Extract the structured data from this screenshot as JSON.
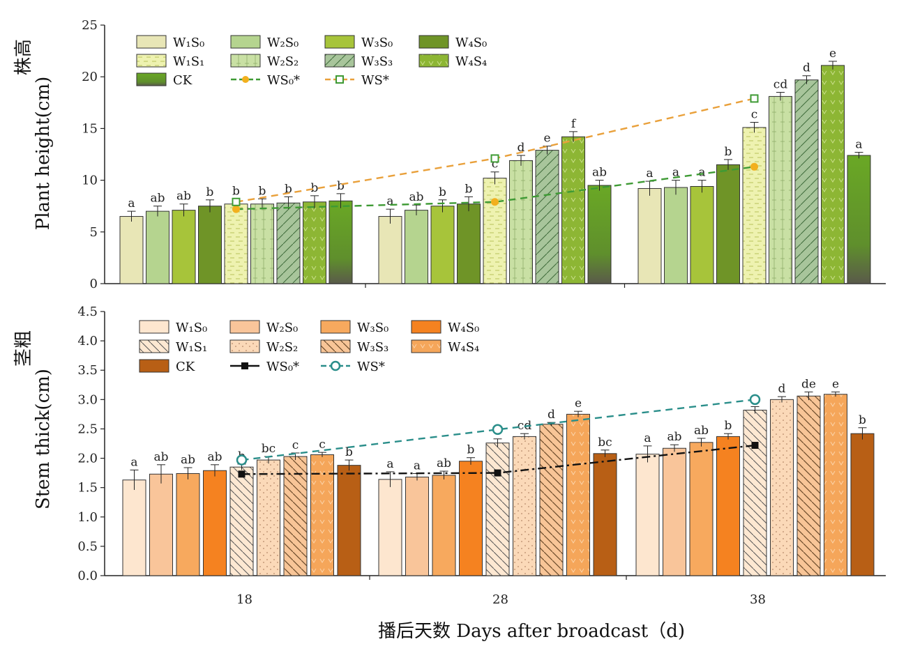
{
  "chart_data": [
    {
      "type": "bar",
      "ylabel_cn": "株高",
      "ylabel": "Plant height(cm)",
      "ylim": [
        0,
        25
      ],
      "yticks": [
        "0",
        "5",
        "10",
        "15",
        "20",
        "25"
      ],
      "xlabel": "播后天数 Days after broadcast（d)",
      "categories": [
        "18",
        "28",
        "38"
      ],
      "colors": {
        "W1S0": "#e8e6b6",
        "W2S0": "#b5d48f",
        "W3S0": "#a7c43a",
        "W4S0": "#6f9427",
        "W1S1": "#eef2b0",
        "W2S2": "#c9e0a4",
        "W3S3": "#a8c59b",
        "W4S4": "#8db634",
        "CK": "#6aa825",
        "WS0": "#3e9a34",
        "WS": "#e9a03a"
      },
      "series": [
        {
          "name": "W1S0",
          "values": [
            6.5,
            6.5,
            9.2
          ],
          "err": [
            0.5,
            0.7,
            0.7
          ],
          "letters": [
            "a",
            "a",
            "a"
          ],
          "pattern": "solid"
        },
        {
          "name": "W2S0",
          "values": [
            7.0,
            7.1,
            9.3
          ],
          "err": [
            0.5,
            0.5,
            0.7
          ],
          "letters": [
            "ab",
            "ab",
            "a"
          ],
          "pattern": "solid"
        },
        {
          "name": "W3S0",
          "values": [
            7.1,
            7.5,
            9.4
          ],
          "err": [
            0.6,
            0.6,
            0.6
          ],
          "letters": [
            "ab",
            "b",
            "a"
          ],
          "pattern": "solid"
        },
        {
          "name": "W4S0",
          "values": [
            7.5,
            7.7,
            11.5
          ],
          "err": [
            0.6,
            0.7,
            0.5
          ],
          "letters": [
            "b",
            "b",
            "b"
          ],
          "pattern": "solid"
        },
        {
          "name": "W1S1",
          "values": [
            7.7,
            10.2,
            15.1
          ],
          "err": [
            0.5,
            0.6,
            0.5
          ],
          "letters": [
            "b",
            "c",
            "c"
          ],
          "pattern": "dash"
        },
        {
          "name": "W2S2",
          "values": [
            7.7,
            11.9,
            18.1
          ],
          "err": [
            0.5,
            0.5,
            0.4
          ],
          "letters": [
            "b",
            "d",
            "cd"
          ],
          "pattern": "grid"
        },
        {
          "name": "W3S3",
          "values": [
            7.8,
            12.9,
            19.7
          ],
          "err": [
            0.6,
            0.4,
            0.4
          ],
          "letters": [
            "b",
            "e",
            "d"
          ],
          "pattern": "diag"
        },
        {
          "name": "W4S4",
          "values": [
            7.9,
            14.2,
            21.1
          ],
          "err": [
            0.6,
            0.5,
            0.4
          ],
          "letters": [
            "b",
            "f",
            "e"
          ],
          "pattern": "vee"
        },
        {
          "name": "CK",
          "values": [
            8.0,
            9.5,
            12.4
          ],
          "err": [
            0.7,
            0.5,
            0.3
          ],
          "letters": [
            "b",
            "ab",
            "a"
          ],
          "pattern": "solid"
        }
      ],
      "lines": [
        {
          "name": "WS0*",
          "values": [
            7.2,
            7.9,
            11.3
          ],
          "color_key": "WS0",
          "marker": "dot"
        },
        {
          "name": "WS*",
          "values": [
            7.9,
            12.1,
            17.9
          ],
          "color_key": "WS",
          "marker": "square-open"
        }
      ],
      "legend": {
        "placement": "top-left",
        "items": [
          {
            "label": "W₁S₀",
            "key": "W1S0",
            "type": "bar"
          },
          {
            "label": "W₂S₀",
            "key": "W2S0",
            "type": "bar"
          },
          {
            "label": "W₃S₀",
            "key": "W3S0",
            "type": "bar"
          },
          {
            "label": "W₄S₀",
            "key": "W4S0",
            "type": "bar"
          },
          {
            "label": "W₁S₁",
            "key": "W1S1",
            "type": "bar"
          },
          {
            "label": "W₂S₂",
            "key": "W2S2",
            "type": "bar"
          },
          {
            "label": "W₃S₃",
            "key": "W3S3",
            "type": "bar"
          },
          {
            "label": "W₄S₄",
            "key": "W4S4",
            "type": "bar"
          },
          {
            "label": "CK",
            "key": "CK",
            "type": "bar"
          },
          {
            "label": "WS₀*",
            "key": "WS0*",
            "type": "line"
          },
          {
            "label": "WS*",
            "key": "WS*",
            "type": "line"
          }
        ]
      }
    },
    {
      "type": "bar",
      "ylabel_cn": "茎粗",
      "ylabel": "Stem thick(cm)",
      "ylim": [
        0,
        4.5
      ],
      "yticks": [
        "0.0",
        "0.5",
        "1.0",
        "1.5",
        "2.0",
        "2.5",
        "3.0",
        "3.5",
        "4.0",
        "4.5"
      ],
      "xlabel": "播后天数 Days after broadcast（d)",
      "categories": [
        "18",
        "28",
        "38"
      ],
      "colors": {
        "W1S0": "#fde6cf",
        "W2S0": "#f9c59a",
        "W3S0": "#f7a95e",
        "W4S0": "#f58220",
        "W1S1": "#fde8d2",
        "W2S2": "#fbd9b8",
        "W3S3": "#f8c597",
        "W4S4": "#f5a65a",
        "CK": "#b85f15",
        "WS0": "#111111",
        "WS": "#2a8e8a"
      },
      "series": [
        {
          "name": "W1S0",
          "values": [
            1.63,
            1.64,
            2.07
          ],
          "err": [
            0.17,
            0.13,
            0.14
          ],
          "letters": [
            "a",
            "a",
            "a"
          ],
          "pattern": "solid"
        },
        {
          "name": "W2S0",
          "values": [
            1.73,
            1.68,
            2.17
          ],
          "err": [
            0.16,
            0.06,
            0.06
          ],
          "letters": [
            "ab",
            "a",
            "ab"
          ],
          "pattern": "solid"
        },
        {
          "name": "W3S0",
          "values": [
            1.74,
            1.71,
            2.27
          ],
          "err": [
            0.1,
            0.07,
            0.07
          ],
          "letters": [
            "ab",
            "ab",
            "ab"
          ],
          "pattern": "solid"
        },
        {
          "name": "W4S0",
          "values": [
            1.79,
            1.95,
            2.37
          ],
          "err": [
            0.1,
            0.06,
            0.05
          ],
          "letters": [
            "ab",
            "b",
            "b"
          ],
          "pattern": "solid"
        },
        {
          "name": "W1S1",
          "values": [
            1.85,
            2.26,
            2.82
          ],
          "err": [
            0.05,
            0.07,
            0.06
          ],
          "letters": [
            "b",
            "c",
            "c"
          ],
          "pattern": "diag"
        },
        {
          "name": "W2S2",
          "values": [
            1.97,
            2.37,
            3.0
          ],
          "err": [
            0.06,
            0.05,
            0.05
          ],
          "letters": [
            "bc",
            "cd",
            "d"
          ],
          "pattern": "dots"
        },
        {
          "name": "W3S3",
          "values": [
            2.03,
            2.58,
            3.06
          ],
          "err": [
            0.06,
            0.03,
            0.07
          ],
          "letters": [
            "c",
            "d",
            "de"
          ],
          "pattern": "diag"
        },
        {
          "name": "W4S4",
          "values": [
            2.06,
            2.75,
            3.09
          ],
          "err": [
            0.04,
            0.05,
            0.04
          ],
          "letters": [
            "c",
            "e",
            "e"
          ],
          "pattern": "vee"
        },
        {
          "name": "CK",
          "values": [
            1.88,
            2.08,
            2.42
          ],
          "err": [
            0.09,
            0.06,
            0.1
          ],
          "letters": [
            "b",
            "bc",
            "b"
          ],
          "pattern": "solid"
        }
      ],
      "lines": [
        {
          "name": "WS0*",
          "values": [
            1.73,
            1.75,
            2.22
          ],
          "color_key": "WS0",
          "marker": "square-filled"
        },
        {
          "name": "WS*",
          "values": [
            1.97,
            2.49,
            3.0
          ],
          "color_key": "WS",
          "marker": "circle-open"
        }
      ],
      "legend": {
        "placement": "top-left",
        "items": [
          {
            "label": "W₁S₀",
            "key": "W1S0",
            "type": "bar"
          },
          {
            "label": "W₂S₀",
            "key": "W2S0",
            "type": "bar"
          },
          {
            "label": "W₃S₀",
            "key": "W3S0",
            "type": "bar"
          },
          {
            "label": "W₄S₀",
            "key": "W4S0",
            "type": "bar"
          },
          {
            "label": "W₁S₁",
            "key": "W1S1",
            "type": "bar"
          },
          {
            "label": "W₂S₂",
            "key": "W2S2",
            "type": "bar"
          },
          {
            "label": "W₃S₃",
            "key": "W3S3",
            "type": "bar"
          },
          {
            "label": "W₄S₄",
            "key": "W4S4",
            "type": "bar"
          },
          {
            "label": "CK",
            "key": "CK",
            "type": "bar"
          },
          {
            "label": "WS₀*",
            "key": "WS0*",
            "type": "line"
          },
          {
            "label": "WS*",
            "key": "WS*",
            "type": "line"
          }
        ]
      }
    }
  ]
}
